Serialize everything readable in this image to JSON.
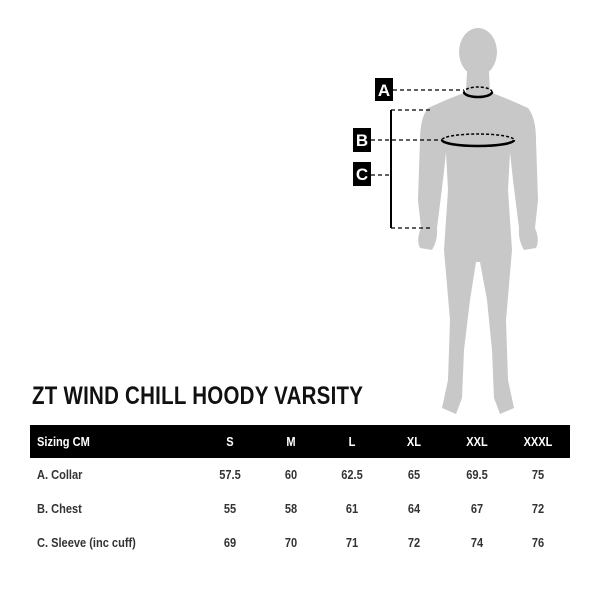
{
  "diagram": {
    "labels": [
      "A",
      "B",
      "C"
    ],
    "figure_color": "#c8c8c8"
  },
  "title": "ZT WIND CHILL HOODY VARSITY",
  "table": {
    "header": [
      "Sizing CM",
      "S",
      "M",
      "L",
      "XL",
      "XXL",
      "XXXL"
    ],
    "rows": [
      {
        "label": "A. Collar",
        "values": [
          "57.5",
          "60",
          "62.5",
          "65",
          "69.5",
          "75"
        ]
      },
      {
        "label": "B. Chest",
        "values": [
          "55",
          "58",
          "61",
          "64",
          "67",
          "72"
        ]
      },
      {
        "label": "C. Sleeve (inc cuff)",
        "values": [
          "69",
          "70",
          "71",
          "72",
          "74",
          "76"
        ]
      }
    ]
  }
}
